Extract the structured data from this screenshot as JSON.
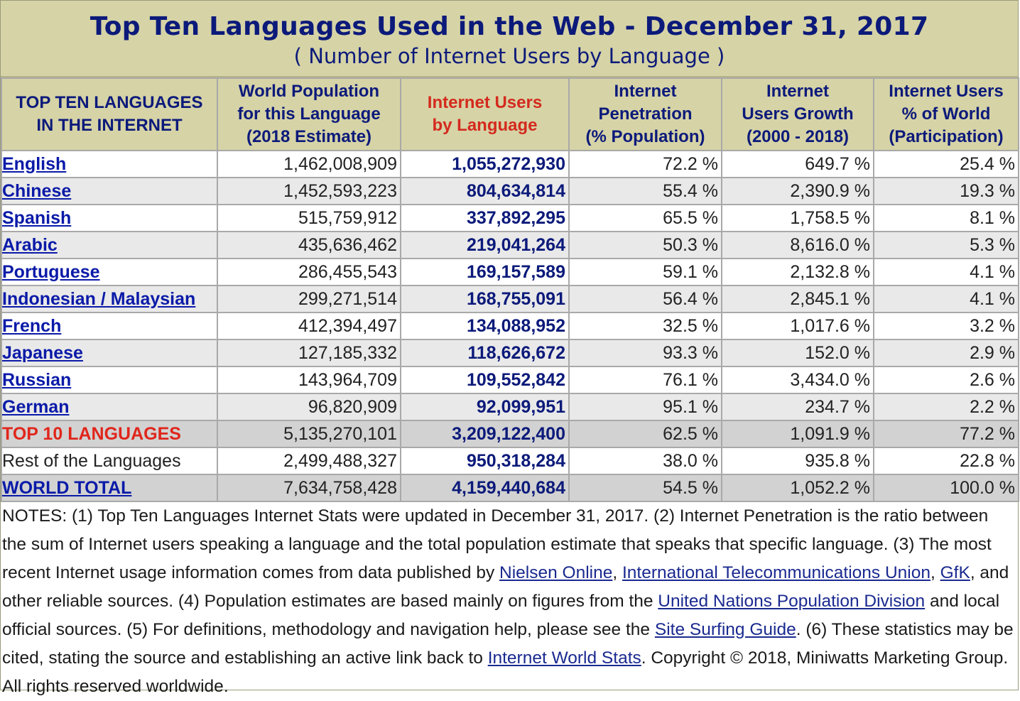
{
  "header": {
    "title": "Top Ten Languages Used in the Web - December 31, 2017",
    "subtitle": "( Number of Internet Users by Language )"
  },
  "columns": [
    [
      "TOP TEN LANGUAGES",
      "IN THE INTERNET"
    ],
    [
      "World Population",
      "for this Language",
      "(2018 Estimate)"
    ],
    [
      "Internet Users",
      "by Language"
    ],
    [
      "Internet",
      "Penetration",
      "(% Population)"
    ],
    [
      "Internet",
      "Users Growth",
      "(2000 - 2018)"
    ],
    [
      "Internet Users",
      "% of World",
      "(Participation)"
    ]
  ],
  "rows": [
    {
      "language": "English",
      "population": "1,462,008,909",
      "users": "1,055,272,930",
      "penetration": "72.2 %",
      "growth": "649.7 %",
      "share": "25.4 %"
    },
    {
      "language": "Chinese",
      "population": "1,452,593,223",
      "users": "804,634,814",
      "penetration": "55.4 %",
      "growth": "2,390.9 %",
      "share": "19.3 %"
    },
    {
      "language": "Spanish",
      "population": "515,759,912",
      "users": "337,892,295",
      "penetration": "65.5 %",
      "growth": "1,758.5 %",
      "share": "8.1 %"
    },
    {
      "language": "Arabic",
      "population": "435,636,462",
      "users": "219,041,264",
      "penetration": "50.3 %",
      "growth": "8,616.0 %",
      "share": "5.3 %"
    },
    {
      "language": "Portuguese",
      "population": "286,455,543",
      "users": "169,157,589",
      "penetration": "59.1 %",
      "growth": "2,132.8 %",
      "share": "4.1 %"
    },
    {
      "language": "Indonesian / Malaysian",
      "population": "299,271,514",
      "users": "168,755,091",
      "penetration": "56.4 %",
      "growth": "2,845.1 %",
      "share": "4.1 %"
    },
    {
      "language": "French",
      "population": "412,394,497",
      "users": "134,088,952",
      "penetration": "32.5 %",
      "growth": "1,017.6 %",
      "share": "3.2 %"
    },
    {
      "language": "Japanese",
      "population": "127,185,332",
      "users": "118,626,672",
      "penetration": "93.3 %",
      "growth": "152.0 %",
      "share": "2.9 %"
    },
    {
      "language": "Russian",
      "population": "143,964,709",
      "users": "109,552,842",
      "penetration": "76.1 %",
      "growth": "3,434.0 %",
      "share": "2.6 %"
    },
    {
      "language": "German",
      "population": "96,820,909",
      "users": "92,099,951",
      "penetration": "95.1 %",
      "growth": "234.7 %",
      "share": "2.2 %"
    }
  ],
  "top10": {
    "language": "TOP 10 LANGUAGES",
    "population": "5,135,270,101",
    "users": "3,209,122,400",
    "penetration": "62.5 %",
    "growth": "1,091.9 %",
    "share": "77.2 %"
  },
  "rest": {
    "language": "Rest of the Languages",
    "population": "2,499,488,327",
    "users": "950,318,284",
    "penetration": "38.0 %",
    "growth": "935.8 %",
    "share": "22.8 %"
  },
  "world": {
    "language": "WORLD TOTAL",
    "population": "7,634,758,428",
    "users": "4,159,440,684",
    "penetration": "54.5 %",
    "growth": "1,052.2 %",
    "share": "100.0 %"
  },
  "notes": {
    "t1": "NOTES: (1) Top Ten Languages Internet Stats were updated in December 31, 2017. (2) Internet Penetration is the ratio between the sum of Internet users speaking a language and the total population estimate that speaks that specific language. (3) The most recent Internet usage information comes from data published by ",
    "l1": "Nielsen Online",
    "t2": ", ",
    "l2": "International Telecommunications Union",
    "t3": ", ",
    "l3": "GfK",
    "t4": ", and other reliable sources. (4) Population estimates are based mainly on figures from the ",
    "l4": "United Nations Population Division",
    "t5": " and local official sources. (5) For definitions, methodology and navigation help, please see the ",
    "l5": "Site Surfing Guide",
    "t6": ". (6) These statistics may be cited, stating the source and establishing an active link back to ",
    "l6": "Internet World Stats",
    "t7": ". Copyright © 2018, Miniwatts Marketing Group. All rights reserved worldwide."
  }
}
